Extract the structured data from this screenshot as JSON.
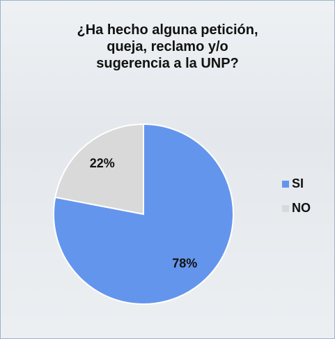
{
  "chart_data": {
    "type": "pie",
    "title": "¿Ha hecho alguna petición,\nqueja, reclamo y/o\nsugerencia a la UNP?",
    "categories": [
      "SI",
      "NO"
    ],
    "values": [
      78,
      22
    ],
    "value_labels": [
      "78%",
      "22%"
    ],
    "colors": [
      "#6495ed",
      "#d9d9d9"
    ],
    "legend": "right"
  }
}
